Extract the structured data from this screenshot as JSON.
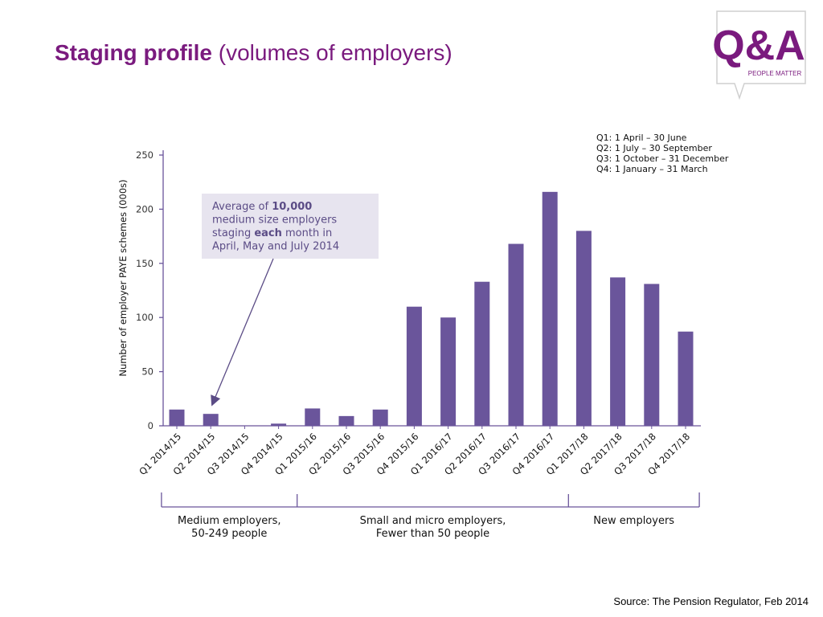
{
  "slide": {
    "title_bold": "Staging profile",
    "title_rest": "(volumes of employers)",
    "source": "Source: The Pension Regulator, Feb 2014",
    "logo": {
      "text": "Q&A",
      "tagline": "PEOPLE MATTER",
      "icon": "qa-speech-bubble-logo"
    }
  },
  "colors": {
    "bar": "#6a559b",
    "axis": "#6a559b",
    "title": "#7a1a7e",
    "annotation_bg": "#e7e4ef"
  },
  "chart_data": {
    "type": "bar",
    "ylabel": "Number of employer PAYE schemes (000s)",
    "xlabel": "",
    "ylim": [
      0,
      250
    ],
    "yticks": [
      0,
      50,
      100,
      150,
      200,
      250
    ],
    "grid": false,
    "categories": [
      "Q1 2014/15",
      "Q2 2014/15",
      "Q3 2014/15",
      "Q4 2014/15",
      "Q1 2015/16",
      "Q2 2015/16",
      "Q3 2015/16",
      "Q4 2015/16",
      "Q1 2016/17",
      "Q2 2016/17",
      "Q3 2016/17",
      "Q4 2016/17",
      "Q1 2017/18",
      "Q2 2017/18",
      "Q3 2017/18",
      "Q4 2017/18"
    ],
    "values": [
      15,
      11,
      0,
      2,
      16,
      9,
      15,
      110,
      100,
      133,
      168,
      216,
      180,
      137,
      131,
      87
    ],
    "legend_note": [
      "Q1: 1 April – 30 June",
      "Q2: 1 July – 30 September",
      "Q3: 1 October – 31 December",
      "Q4: 1 January – 31 March"
    ],
    "annotation": {
      "lines": [
        [
          {
            "t": "Average of ",
            "b": false
          },
          {
            "t": "10,000",
            "b": true
          }
        ],
        [
          {
            "t": "medium size employers",
            "b": false
          }
        ],
        [
          {
            "t": "staging ",
            "b": false
          },
          {
            "t": "each",
            "b": true
          },
          {
            "t": " month in",
            "b": false
          }
        ],
        [
          {
            "t": "April, May and July 2014",
            "b": false
          }
        ]
      ],
      "points_to": "Q2 2014/15"
    },
    "groups": [
      {
        "label": [
          "Medium employers,",
          "50-249 people"
        ],
        "from": 0,
        "to": 3
      },
      {
        "label": [
          "Small and micro employers,",
          "Fewer than 50 people"
        ],
        "from": 4,
        "to": 11
      },
      {
        "label": [
          "New employers"
        ],
        "from": 12,
        "to": 15
      }
    ]
  }
}
